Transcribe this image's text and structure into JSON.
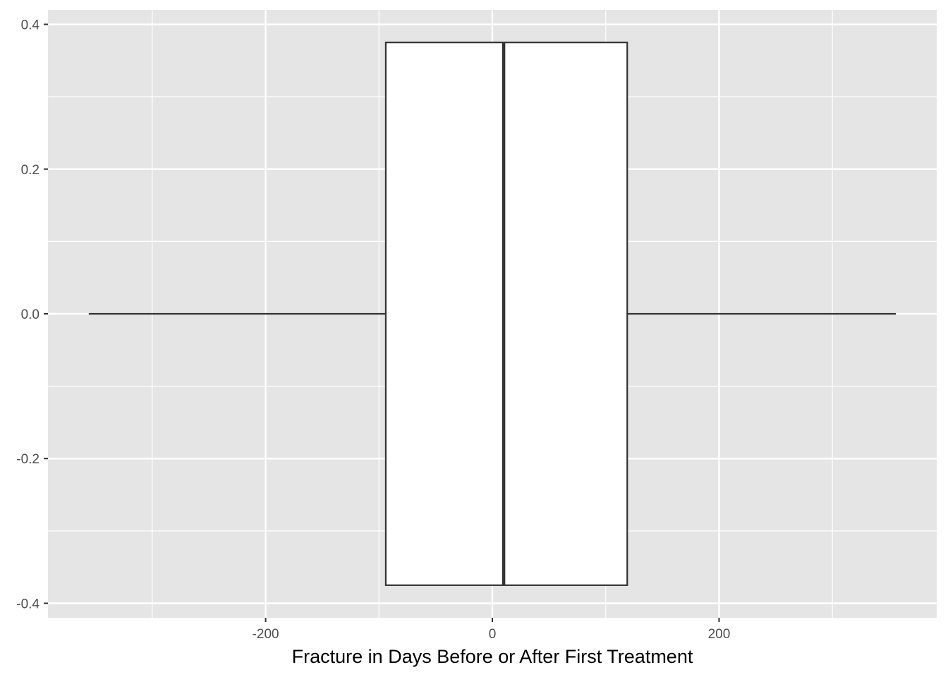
{
  "chart_data": {
    "type": "boxplot",
    "title": "",
    "xlabel": "Fracture in Days Before or After First Treatment",
    "ylabel": "",
    "xlim": [
      -392,
      392
    ],
    "ylim": [
      -0.42,
      0.42
    ],
    "x_ticks": [
      -200,
      0,
      200
    ],
    "x_tick_labels": [
      "-200",
      "0",
      "200"
    ],
    "x_minor_ticks": [
      -300,
      -100,
      100,
      300
    ],
    "y_ticks": [
      0.4,
      0.2,
      0.0,
      -0.2,
      -0.4
    ],
    "y_tick_labels": [
      "0.4",
      "0.2",
      "0.0",
      "-0.2",
      "-0.4"
    ],
    "y_minor_ticks": [
      0.3,
      0.1,
      -0.1,
      -0.3
    ],
    "grid": true,
    "box": {
      "whisker_low": -356,
      "q1": -94,
      "median": 10,
      "q3": 119,
      "whisker_high": 356,
      "y_center": 0.0,
      "half_width": 0.375
    },
    "colors": {
      "panel": "#e5e5e5",
      "grid": "#ffffff",
      "box_fill": "#ffffff",
      "box_stroke": "#333333",
      "axis_text": "#4d4d4d"
    }
  }
}
